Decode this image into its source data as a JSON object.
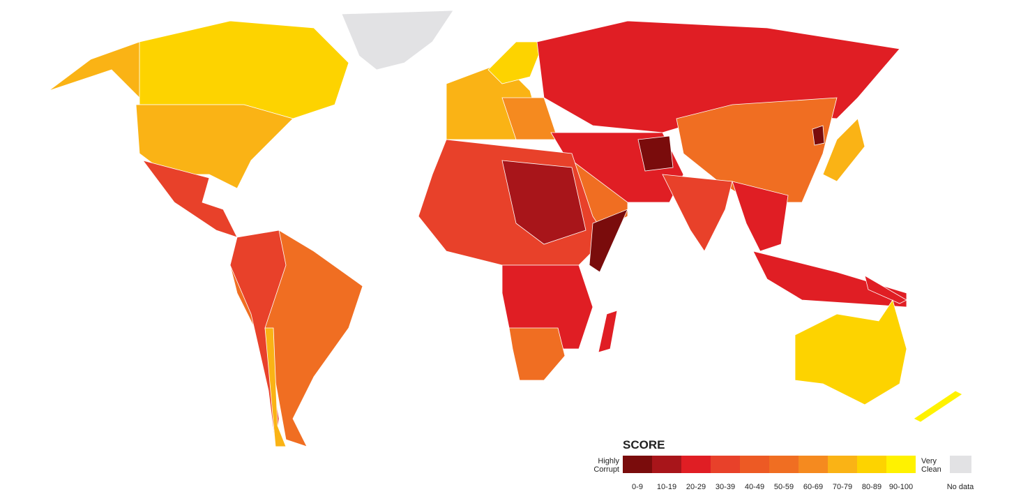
{
  "legend": {
    "title": "SCORE",
    "low_label": "Highly Corrupt",
    "high_label": "Very Clean",
    "no_data_label": "No data",
    "bins": [
      {
        "label": "0-9",
        "color": "#7a0c0c"
      },
      {
        "label": "10-19",
        "color": "#a8151a"
      },
      {
        "label": "20-29",
        "color": "#e01e24"
      },
      {
        "label": "30-39",
        "color": "#e8412a"
      },
      {
        "label": "40-49",
        "color": "#ed5a24"
      },
      {
        "label": "50-59",
        "color": "#f06e22"
      },
      {
        "label": "60-69",
        "color": "#f58a1f"
      },
      {
        "label": "70-79",
        "color": "#fab315"
      },
      {
        "label": "80-89",
        "color": "#fdd300"
      },
      {
        "label": "90-100",
        "color": "#fff200"
      }
    ],
    "no_data_color": "#e2e2e4"
  }
}
